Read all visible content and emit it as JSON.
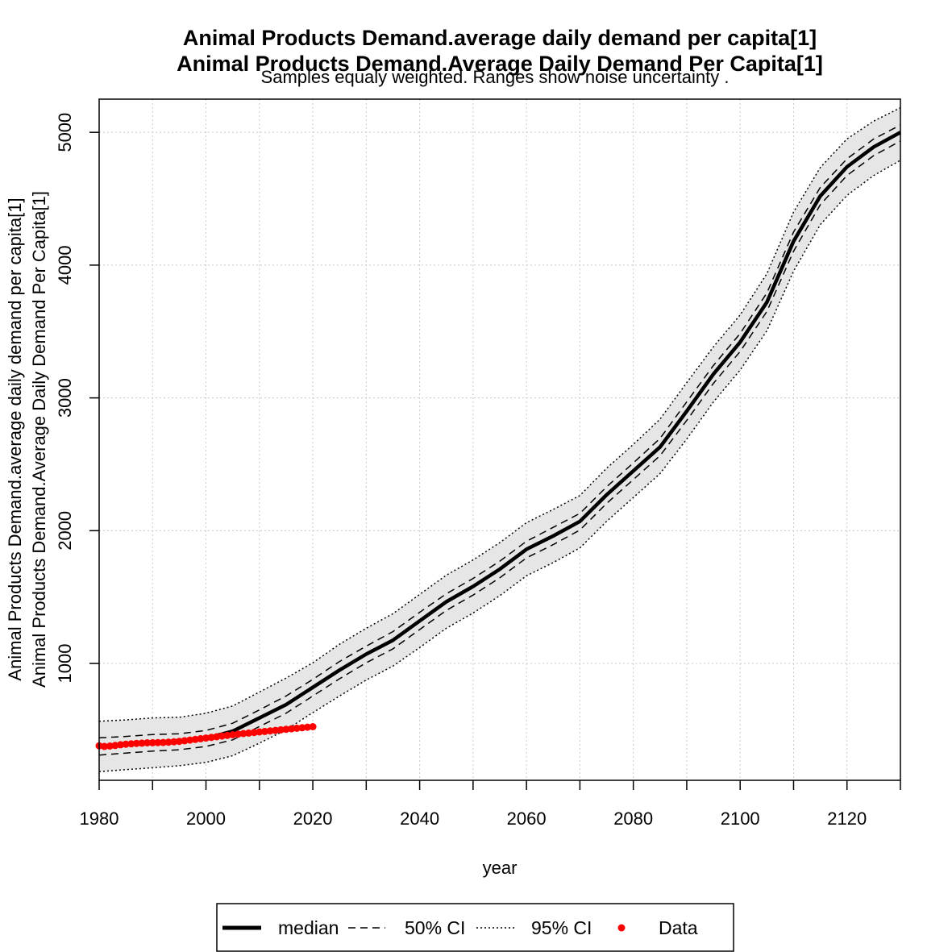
{
  "chart_data": {
    "type": "line",
    "title_lines": [
      "Animal Products Demand.average daily demand per capita[1]",
      "Animal Products Demand.Average Daily Demand Per Capita[1]"
    ],
    "subtitle": "Samples equaly weighted. Ranges show  noise uncertainty .",
    "xlabel": "year",
    "ylabel_lines": [
      "Animal Products Demand.average daily demand per capita[1]",
      "Animal Products Demand.Average Daily Demand Per Capita[1]"
    ],
    "xlim": [
      1980,
      2130
    ],
    "ylim": [
      120,
      5250
    ],
    "x_ticks": [
      1980,
      2000,
      2020,
      2040,
      2060,
      2080,
      2100,
      2120
    ],
    "x_minor_ticks": [
      1990,
      2010,
      2030,
      2050,
      2070,
      2090,
      2110,
      2130
    ],
    "y_ticks": [
      1000,
      2000,
      3000,
      4000,
      5000
    ],
    "grid": true,
    "legend_position": "bottom",
    "legend": [
      "median",
      "50% CI",
      "95% CI",
      "Data"
    ],
    "series": [
      {
        "name": "median",
        "x": [
          1980,
          1985,
          1990,
          1995,
          2000,
          2005,
          2010,
          2015,
          2020,
          2025,
          2030,
          2035,
          2040,
          2045,
          2050,
          2055,
          2060,
          2065,
          2070,
          2075,
          2080,
          2085,
          2090,
          2095,
          2100,
          2105,
          2110,
          2115,
          2120,
          2125,
          2130
        ],
        "values": [
          375,
          390,
          405,
          410,
          435,
          490,
          590,
          690,
          820,
          950,
          1070,
          1175,
          1320,
          1465,
          1580,
          1710,
          1860,
          1960,
          2070,
          2270,
          2450,
          2630,
          2900,
          3180,
          3420,
          3720,
          4180,
          4520,
          4740,
          4890,
          5000
        ]
      },
      {
        "name": "50% CI upper",
        "x": [
          1980,
          1985,
          1990,
          1995,
          2000,
          2005,
          2010,
          2015,
          2020,
          2025,
          2030,
          2035,
          2040,
          2045,
          2050,
          2055,
          2060,
          2065,
          2070,
          2075,
          2080,
          2085,
          2090,
          2095,
          2100,
          2105,
          2110,
          2115,
          2120,
          2125,
          2130
        ],
        "values": [
          440,
          450,
          465,
          470,
          495,
          550,
          650,
          755,
          880,
          1015,
          1130,
          1240,
          1385,
          1525,
          1640,
          1770,
          1920,
          2025,
          2130,
          2330,
          2510,
          2695,
          2970,
          3245,
          3485,
          3790,
          4250,
          4585,
          4800,
          4950,
          5055
        ]
      },
      {
        "name": "50% CI lower",
        "x": [
          1980,
          1985,
          1990,
          1995,
          2000,
          2005,
          2010,
          2015,
          2020,
          2025,
          2030,
          2035,
          2040,
          2045,
          2050,
          2055,
          2060,
          2065,
          2070,
          2075,
          2080,
          2085,
          2090,
          2095,
          2100,
          2105,
          2110,
          2115,
          2120,
          2125,
          2130
        ],
        "values": [
          310,
          325,
          340,
          350,
          375,
          425,
          525,
          625,
          755,
          885,
          1005,
          1110,
          1255,
          1400,
          1515,
          1645,
          1795,
          1895,
          2005,
          2205,
          2385,
          2565,
          2830,
          3110,
          3350,
          3650,
          4105,
          4455,
          4675,
          4825,
          4935
        ]
      },
      {
        "name": "95% CI upper",
        "x": [
          1980,
          1985,
          1990,
          1995,
          2000,
          2005,
          2010,
          2015,
          2020,
          2025,
          2030,
          2035,
          2040,
          2045,
          2050,
          2055,
          2060,
          2065,
          2070,
          2075,
          2080,
          2085,
          2090,
          2095,
          2100,
          2105,
          2110,
          2115,
          2120,
          2125,
          2130
        ],
        "values": [
          565,
          575,
          590,
          595,
          625,
          680,
          785,
          890,
          1005,
          1145,
          1265,
          1375,
          1520,
          1665,
          1780,
          1910,
          2060,
          2160,
          2265,
          2470,
          2650,
          2840,
          3115,
          3385,
          3625,
          3935,
          4400,
          4735,
          4950,
          5085,
          5185
        ]
      },
      {
        "name": "95% CI lower",
        "x": [
          1980,
          1985,
          1990,
          1995,
          2000,
          2005,
          2010,
          2015,
          2020,
          2025,
          2030,
          2035,
          2040,
          2045,
          2050,
          2055,
          2060,
          2065,
          2070,
          2075,
          2080,
          2085,
          2090,
          2095,
          2100,
          2105,
          2110,
          2115,
          2120,
          2125,
          2130
        ],
        "values": [
          185,
          200,
          215,
          230,
          255,
          305,
          400,
          500,
          630,
          755,
          875,
          980,
          1120,
          1265,
          1380,
          1510,
          1660,
          1760,
          1870,
          2070,
          2250,
          2430,
          2690,
          2970,
          3210,
          3505,
          3955,
          4305,
          4525,
          4675,
          4790
        ]
      },
      {
        "name": "Data",
        "x": [
          1980,
          1981,
          1982,
          1983,
          1984,
          1985,
          1986,
          1987,
          1988,
          1989,
          1990,
          1991,
          1992,
          1993,
          1994,
          1995,
          1996,
          1997,
          1998,
          1999,
          2000,
          2001,
          2002,
          2003,
          2004,
          2005,
          2006,
          2007,
          2008,
          2009,
          2010,
          2011,
          2012,
          2013,
          2014,
          2015,
          2016,
          2017,
          2018,
          2019,
          2020
        ],
        "values": [
          380,
          375,
          378,
          382,
          388,
          392,
          395,
          398,
          400,
          402,
          403,
          404,
          405,
          407,
          410,
          413,
          418,
          423,
          428,
          433,
          438,
          443,
          448,
          453,
          458,
          463,
          468,
          472,
          476,
          480,
          484,
          488,
          492,
          496,
          500,
          504,
          508,
          512,
          516,
          520,
          524
        ]
      }
    ]
  }
}
